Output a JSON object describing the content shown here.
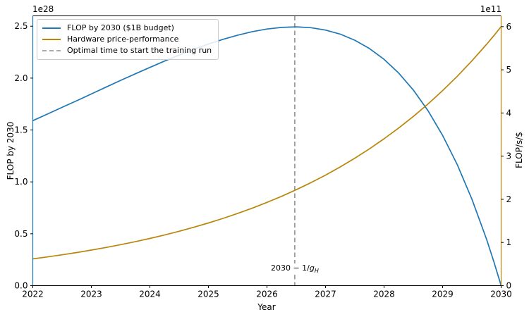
{
  "chart_data": {
    "type": "line",
    "title": "",
    "xlabel": "Year",
    "x_axis": {
      "lim": [
        2022,
        2030
      ],
      "ticks": [
        2022,
        2023,
        2024,
        2025,
        2026,
        2027,
        2028,
        2029,
        2030
      ],
      "tick_labels": [
        "2022",
        "2023",
        "2024",
        "2025",
        "2026",
        "2027",
        "2028",
        "2029",
        "2030"
      ]
    },
    "left_axis": {
      "label": "FLOP by 2030",
      "offset_text": "1e28",
      "lim": [
        0,
        2.6
      ],
      "ticks": [
        0,
        0.5,
        1.0,
        1.5,
        2.0,
        2.5
      ],
      "tick_labels": [
        "0.0",
        "0.5",
        "1.0",
        "1.5",
        "2.0",
        "2.5"
      ],
      "spine_color": "#1f77b4"
    },
    "right_axis": {
      "label": "FLOP/s/$",
      "offset_text": "1e11",
      "lim": [
        0,
        6.25
      ],
      "ticks": [
        0,
        1,
        2,
        3,
        4,
        5,
        6
      ],
      "tick_labels": [
        "0",
        "1",
        "2",
        "3",
        "4",
        "5",
        "6"
      ],
      "spine_color": "#b8860b"
    },
    "x": [
      2022,
      2022.25,
      2022.5,
      2022.75,
      2023,
      2023.25,
      2023.5,
      2023.75,
      2024,
      2024.25,
      2024.5,
      2024.75,
      2025,
      2025.25,
      2025.5,
      2025.75,
      2026,
      2026.25,
      2026.5,
      2026.75,
      2027,
      2027.25,
      2027.5,
      2027.75,
      2028,
      2028.25,
      2028.5,
      2028.75,
      2029,
      2029.25,
      2029.5,
      2029.75,
      2029.875,
      2030
    ],
    "series": [
      {
        "name": "FLOP by 2030 ($1B budget)",
        "color": "#1f77b4",
        "axis": "left",
        "unit_scale": "1e28 FLOP",
        "values": [
          1.59,
          1.654,
          1.718,
          1.782,
          1.847,
          1.913,
          1.978,
          2.041,
          2.103,
          2.164,
          2.222,
          2.277,
          2.328,
          2.374,
          2.414,
          2.448,
          2.473,
          2.489,
          2.494,
          2.486,
          2.463,
          2.424,
          2.365,
          2.285,
          2.181,
          2.048,
          1.885,
          1.686,
          1.448,
          1.166,
          0.834,
          0.448,
          0.232,
          0.0
        ]
      },
      {
        "name": "Hardware price-performance",
        "color": "#b8860b",
        "axis": "right",
        "unit_scale": "1e11 FLOP/s/$",
        "values": [
          0.62,
          0.666,
          0.714,
          0.767,
          0.824,
          0.884,
          0.949,
          1.019,
          1.094,
          1.174,
          1.26,
          1.353,
          1.452,
          1.559,
          1.674,
          1.797,
          1.929,
          2.07,
          2.223,
          2.386,
          2.561,
          2.75,
          2.952,
          3.169,
          3.402,
          3.652,
          3.92,
          4.208,
          4.518,
          4.85,
          5.207,
          5.589,
          5.79,
          6.0
        ]
      }
    ],
    "vline": {
      "x": 2026.475,
      "color": "#7f7f7f",
      "style": "dashed",
      "legend_label": "Optimal time to start the training run"
    },
    "annotation": {
      "prefix": "2030 − 1/",
      "variable": "g",
      "subscript": "H",
      "x": 2026.475
    },
    "legend_position": "upper left"
  }
}
